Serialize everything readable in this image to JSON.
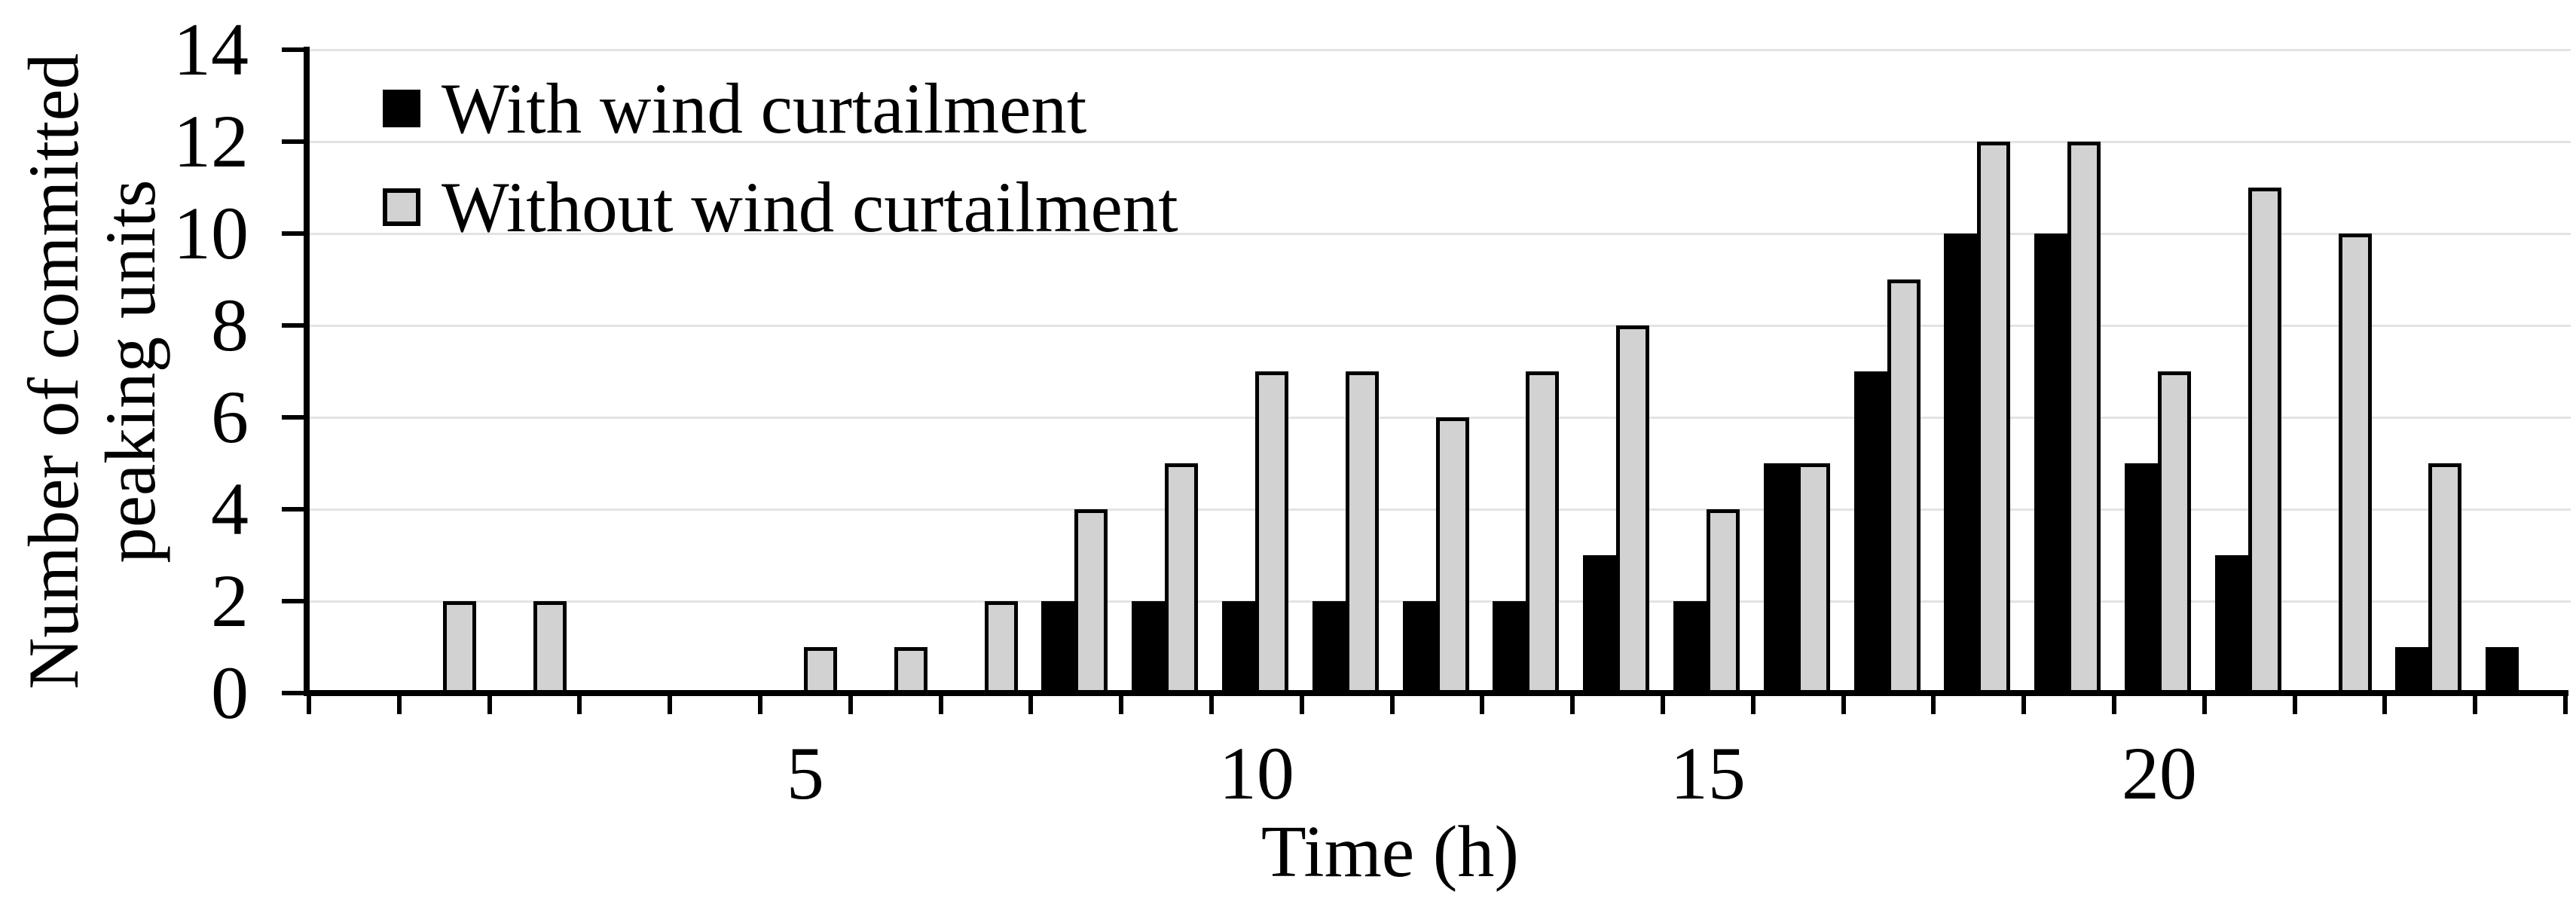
{
  "chart_data": {
    "type": "bar",
    "title": "",
    "xlabel": "Time (h)",
    "ylabel": "Number of committed peaking units",
    "ylabel_lines": [
      "Number of committed",
      "peaking units"
    ],
    "categories_hours": [
      0,
      1,
      2,
      3,
      4,
      5,
      6,
      7,
      8,
      9,
      10,
      11,
      12,
      13,
      14,
      15,
      16,
      17,
      18,
      19,
      20,
      21,
      22,
      23,
      24
    ],
    "series": [
      {
        "name": "With wind curtailment",
        "color": "#000000",
        "values": [
          0,
          0,
          0,
          0,
          0,
          0,
          0,
          0,
          2,
          2,
          2,
          2,
          2,
          2,
          3,
          2,
          5,
          7,
          10,
          10,
          5,
          3,
          0,
          1,
          1
        ]
      },
      {
        "name": "Without wind curtailment",
        "color": "#d3d2d2",
        "values": [
          0,
          2,
          2,
          0,
          0,
          1,
          1,
          2,
          4,
          5,
          7,
          7,
          6,
          7,
          8,
          4,
          5,
          9,
          12,
          12,
          7,
          11,
          10,
          5,
          0
        ]
      }
    ],
    "ylim": [
      0,
      14
    ],
    "yticks": [
      0,
      2,
      4,
      6,
      8,
      10,
      12,
      14
    ],
    "xtick_labels": [
      {
        "hour": 5,
        "label": "5"
      },
      {
        "hour": 10,
        "label": "10"
      },
      {
        "hour": 15,
        "label": "15"
      },
      {
        "hour": 20,
        "label": "20"
      }
    ],
    "grid": true,
    "legend_position": "top-left",
    "colors": {
      "bar_outline": "#000000",
      "gridline": "#e3e3e3",
      "axis": "#000000",
      "background": "#ffffff"
    }
  }
}
